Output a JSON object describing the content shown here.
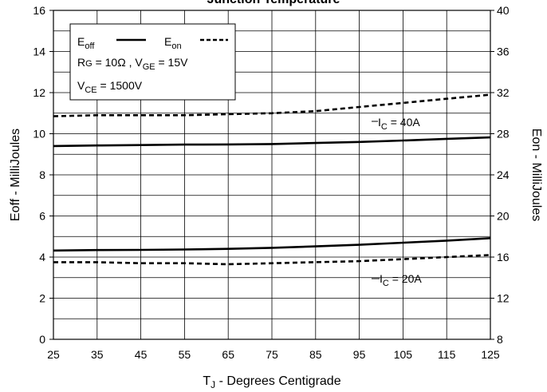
{
  "chart_data": {
    "type": "line",
    "title": "Junction Temperature",
    "xlabel_main": "T",
    "xlabel_sub": "J",
    "xlabel_rest": " - Degrees Centigrade",
    "ylabel_left": "Eoff - MilliJoules",
    "ylabel_right": "Eon - MilliJoules",
    "xlim": [
      25,
      125
    ],
    "ylim_left": [
      0,
      16
    ],
    "ylim_right": [
      8,
      40
    ],
    "x_ticks": [
      25,
      35,
      45,
      55,
      65,
      75,
      85,
      95,
      105,
      115,
      125
    ],
    "y_ticks_left": [
      0,
      2,
      4,
      6,
      8,
      10,
      12,
      14,
      16
    ],
    "y_ticks_right": [
      8,
      12,
      16,
      20,
      24,
      28,
      32,
      36,
      40
    ],
    "grid": true,
    "legend_position": "top-left",
    "legend": {
      "eoff_main": "E",
      "eoff_sub": "off",
      "eon_main": "E",
      "eon_sub": "on",
      "cond1_a": "R",
      "cond1_b": "G",
      "cond1_c": " = 10Ω ,  V",
      "cond1_d": "GE",
      "cond1_e": " = 15V",
      "cond2_a": "V",
      "cond2_b": "CE",
      "cond2_c": " = 1500V"
    },
    "annotations": [
      {
        "main": "I",
        "sub": "C",
        "rest": " = 40A"
      },
      {
        "main": "I",
        "sub": "C",
        "rest": " = 20A"
      }
    ],
    "series": [
      {
        "axis": "left",
        "style": "solid",
        "x": [
          25,
          35,
          45,
          55,
          65,
          75,
          85,
          95,
          105,
          115,
          125
        ],
        "values": [
          9.4,
          9.43,
          9.45,
          9.47,
          9.48,
          9.5,
          9.55,
          9.6,
          9.67,
          9.75,
          9.82
        ]
      },
      {
        "axis": "left",
        "style": "solid",
        "x": [
          25,
          35,
          45,
          55,
          65,
          75,
          85,
          95,
          105,
          115,
          125
        ],
        "values": [
          4.32,
          4.34,
          4.35,
          4.37,
          4.4,
          4.45,
          4.52,
          4.6,
          4.7,
          4.8,
          4.92
        ]
      },
      {
        "axis": "right",
        "style": "dashed",
        "x": [
          25,
          35,
          45,
          55,
          65,
          75,
          85,
          95,
          105,
          115,
          125
        ],
        "values": [
          29.7,
          29.8,
          29.8,
          29.8,
          29.9,
          30.0,
          30.2,
          30.6,
          31.0,
          31.4,
          31.8
        ]
      },
      {
        "axis": "right",
        "style": "dashed",
        "x": [
          25,
          35,
          45,
          55,
          65,
          75,
          85,
          95,
          105,
          115,
          125
        ],
        "values": [
          15.5,
          15.5,
          15.4,
          15.4,
          15.3,
          15.4,
          15.5,
          15.6,
          15.8,
          16.0,
          16.2
        ]
      }
    ]
  }
}
